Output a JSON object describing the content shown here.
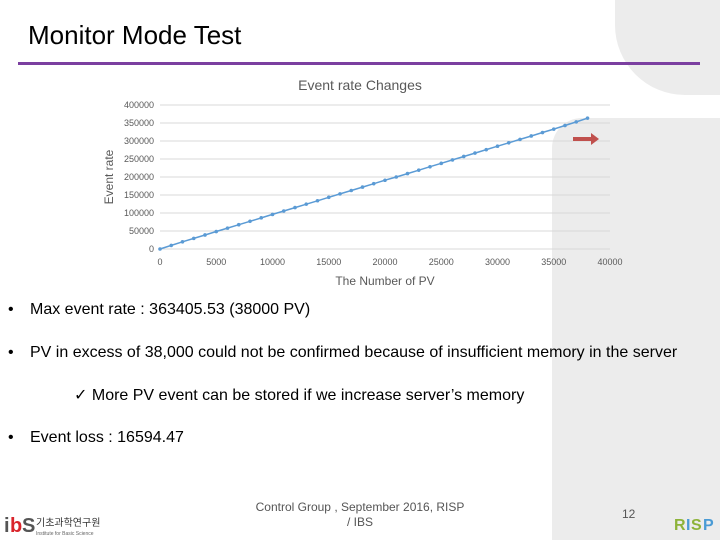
{
  "slide": {
    "title": "Monitor Mode Test",
    "bullets": [
      "Max event rate : 363405.53 (38000 PV)",
      "PV in excess of 38,000 could not be confirmed because of insufficient memory in the server",
      "Event loss :  16594.47"
    ],
    "sub_bullet": "More PV event can be stored if we increase server’s memory",
    "footer_line1": "Control Group , September 2016, RISP",
    "footer_line2": "/ IBS",
    "page_number": "12",
    "logo_left_text": "기초과학연구원",
    "logo_left_subtext": "Institute for Basic Science",
    "logo_right_text": "RISP"
  },
  "colors": {
    "accent_rule": "#7b3fa0",
    "series": "#5b9bd5",
    "arrow": "#c0504d"
  },
  "chart_data": {
    "type": "line",
    "title": "Event rate Changes",
    "xlabel": "The Number of PV",
    "ylabel": "Event rate",
    "xlim": [
      0,
      40000
    ],
    "ylim": [
      0,
      400000
    ],
    "xticks": [
      "0",
      "5000",
      "10000",
      "15000",
      "20000",
      "25000",
      "30000",
      "35000",
      "40000"
    ],
    "yticks": [
      "0",
      "50000",
      "100000",
      "150000",
      "200000",
      "250000",
      "300000",
      "350000",
      "400000"
    ],
    "grid": "horizontal",
    "series": [
      {
        "x": [
          0,
          1000,
          2000,
          3000,
          4000,
          5000,
          6000,
          7000,
          8000,
          9000,
          10000,
          11000,
          12000,
          13000,
          14000,
          15000,
          16000,
          17000,
          18000,
          19000,
          20000,
          21000,
          22000,
          23000,
          24000,
          25000,
          26000,
          27000,
          28000,
          29000,
          30000,
          31000,
          32000,
          33000,
          34000,
          35000,
          36000,
          37000,
          38000
        ],
        "y": [
          0,
          10000,
          20000,
          29500,
          39000,
          48500,
          58000,
          67500,
          77000,
          86500,
          96000,
          105500,
          115000,
          124500,
          134000,
          143500,
          153000,
          162500,
          172000,
          181500,
          191000,
          200000,
          209500,
          219000,
          228500,
          238000,
          247500,
          257000,
          266500,
          276000,
          285500,
          295000,
          304500,
          314000,
          323500,
          333000,
          343000,
          353000,
          363405.53
        ]
      }
    ]
  }
}
